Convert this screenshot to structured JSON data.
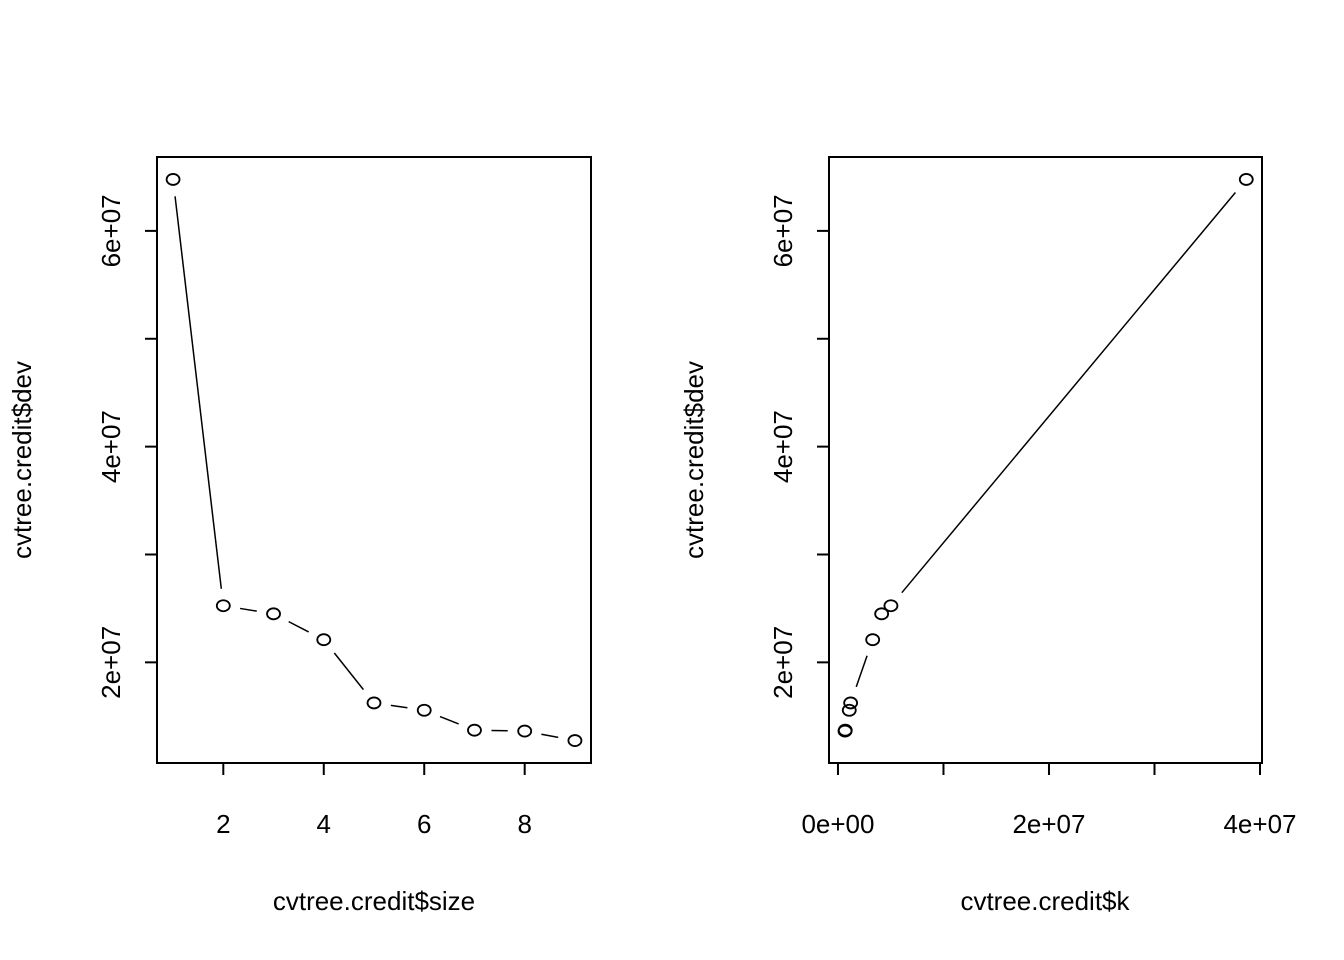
{
  "chart_data": [
    {
      "type": "line",
      "plot_style": "points-and-lines",
      "title": "",
      "xlabel": "cvtree.credit$size",
      "ylabel": "cvtree.credit$dev",
      "x": [
        1,
        2,
        3,
        4,
        5,
        6,
        7,
        8,
        9
      ],
      "y": [
        64770000,
        25250000,
        24500000,
        22100000,
        16240000,
        15560000,
        13710000,
        13630000,
        12750000
      ],
      "xlim": [
        0.68,
        9.32
      ],
      "ylim": [
        10670000,
        66850000
      ],
      "x_ticks": [
        2,
        4,
        6,
        8
      ],
      "x_tick_labels": [
        "2",
        "4",
        "6",
        "8"
      ],
      "y_ticks": [
        20000000,
        30000000,
        40000000,
        50000000,
        60000000
      ],
      "y_tick_labels": [
        "2e+07",
        "",
        "4e+07",
        "",
        "6e+07"
      ],
      "grid": false,
      "legend": null
    },
    {
      "type": "line",
      "plot_style": "points-and-lines",
      "title": "",
      "xlabel": "cvtree.credit$k",
      "ylabel": "cvtree.credit$dev",
      "x": [
        38700000,
        5020000,
        4140000,
        3290000,
        1200000,
        1070000,
        690000,
        670000
      ],
      "y": [
        64770000,
        25250000,
        24500000,
        22100000,
        16240000,
        15560000,
        13710000,
        13630000
      ],
      "xlim": [
        -850000,
        40190000
      ],
      "ylim": [
        10670000,
        66850000
      ],
      "x_ticks": [
        0,
        10000000,
        20000000,
        30000000,
        40000000
      ],
      "x_tick_labels": [
        "0e+00",
        "",
        "2e+07",
        "",
        "4e+07"
      ],
      "y_ticks": [
        20000000,
        30000000,
        40000000,
        50000000,
        60000000
      ],
      "y_tick_labels": [
        "2e+07",
        "",
        "4e+07",
        "",
        "6e+07"
      ],
      "grid": false,
      "legend": null
    }
  ]
}
